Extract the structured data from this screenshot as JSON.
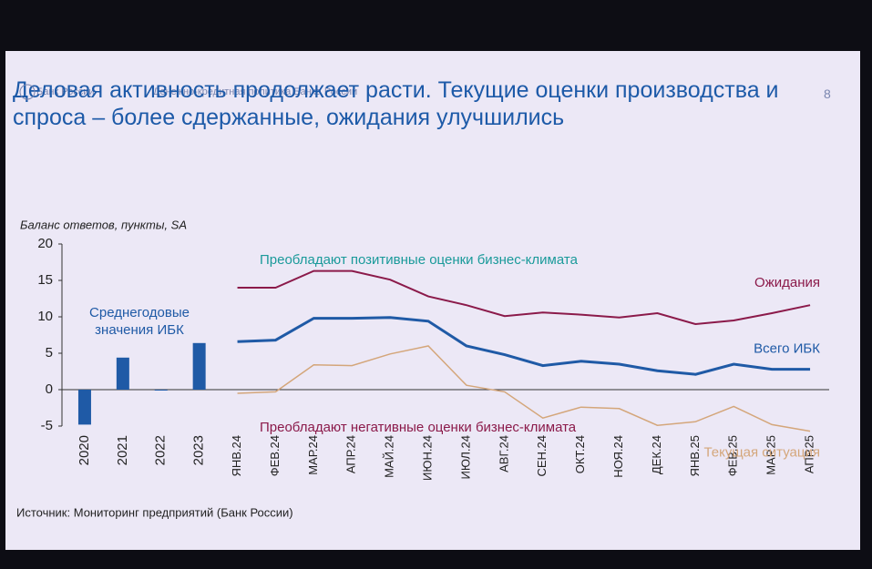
{
  "slide": {
    "logo": "Банк России",
    "section": "Денежно-кредитная политика Банка России",
    "page": "8",
    "title": "Деловая активность продолжает расти. Текущие оценки производства и спроса – более сдержанные, ожидания улучшились",
    "source": "Источник: Мониторинг предприятий (Банк России)"
  },
  "chart_data": {
    "type": "combo",
    "y_label": "Баланс ответов, пункты, SA",
    "annotations": [
      "Преобладают позитивные оценки бизнес-климата",
      "Преобладают негативные оценки бизнес-климата"
    ],
    "categories": [
      "2020",
      "2021",
      "2022",
      "2023",
      "ЯНВ.24",
      "ФЕВ.24",
      "МАР.24",
      "АПР.24",
      "МАЙ.24",
      "ИЮН.24",
      "ИЮЛ.24",
      "АВГ.24",
      "СЕН.24",
      "ОКТ.24",
      "НОЯ.24",
      "ДЕК.24",
      "ЯНВ.25",
      "ФЕВ.25",
      "МАР.25",
      "АПР.25"
    ],
    "series": [
      {
        "name": "Среднегодовые значения ИБК",
        "type": "bar",
        "color": "#1f5aa6",
        "values": [
          -4.8,
          4.4,
          0,
          6.4,
          null,
          null,
          null,
          null,
          null,
          null,
          null,
          null,
          null,
          null,
          null,
          null,
          null,
          null,
          null,
          null
        ]
      },
      {
        "name": "Ожидания",
        "type": "line",
        "color": "#8b1a4a",
        "values": [
          null,
          null,
          null,
          null,
          14,
          14,
          16.3,
          16.3,
          15.1,
          12.8,
          11.6,
          10.1,
          10.6,
          10.3,
          9.9,
          10.5,
          9,
          9.5,
          10.5,
          11.6
        ]
      },
      {
        "name": "Всего ИБК",
        "type": "line",
        "color": "#1f5aa6",
        "values": [
          null,
          null,
          null,
          null,
          6.6,
          6.8,
          9.8,
          9.8,
          9.9,
          9.4,
          6,
          4.8,
          3.3,
          3.9,
          3.5,
          2.6,
          2.1,
          3.5,
          2.8,
          2.8
        ]
      },
      {
        "name": "Текущая ситуация",
        "type": "line",
        "color": "#d4a67a",
        "values": [
          null,
          null,
          null,
          null,
          -0.5,
          -0.3,
          3.4,
          3.3,
          4.9,
          6,
          0.6,
          -0.3,
          -3.9,
          -2.4,
          -2.6,
          -4.9,
          -4.4,
          -2.3,
          -4.8,
          -5.7
        ]
      }
    ],
    "ylim": [
      -5,
      20
    ],
    "yticks": [
      -5,
      0,
      5,
      10,
      15,
      20
    ]
  }
}
